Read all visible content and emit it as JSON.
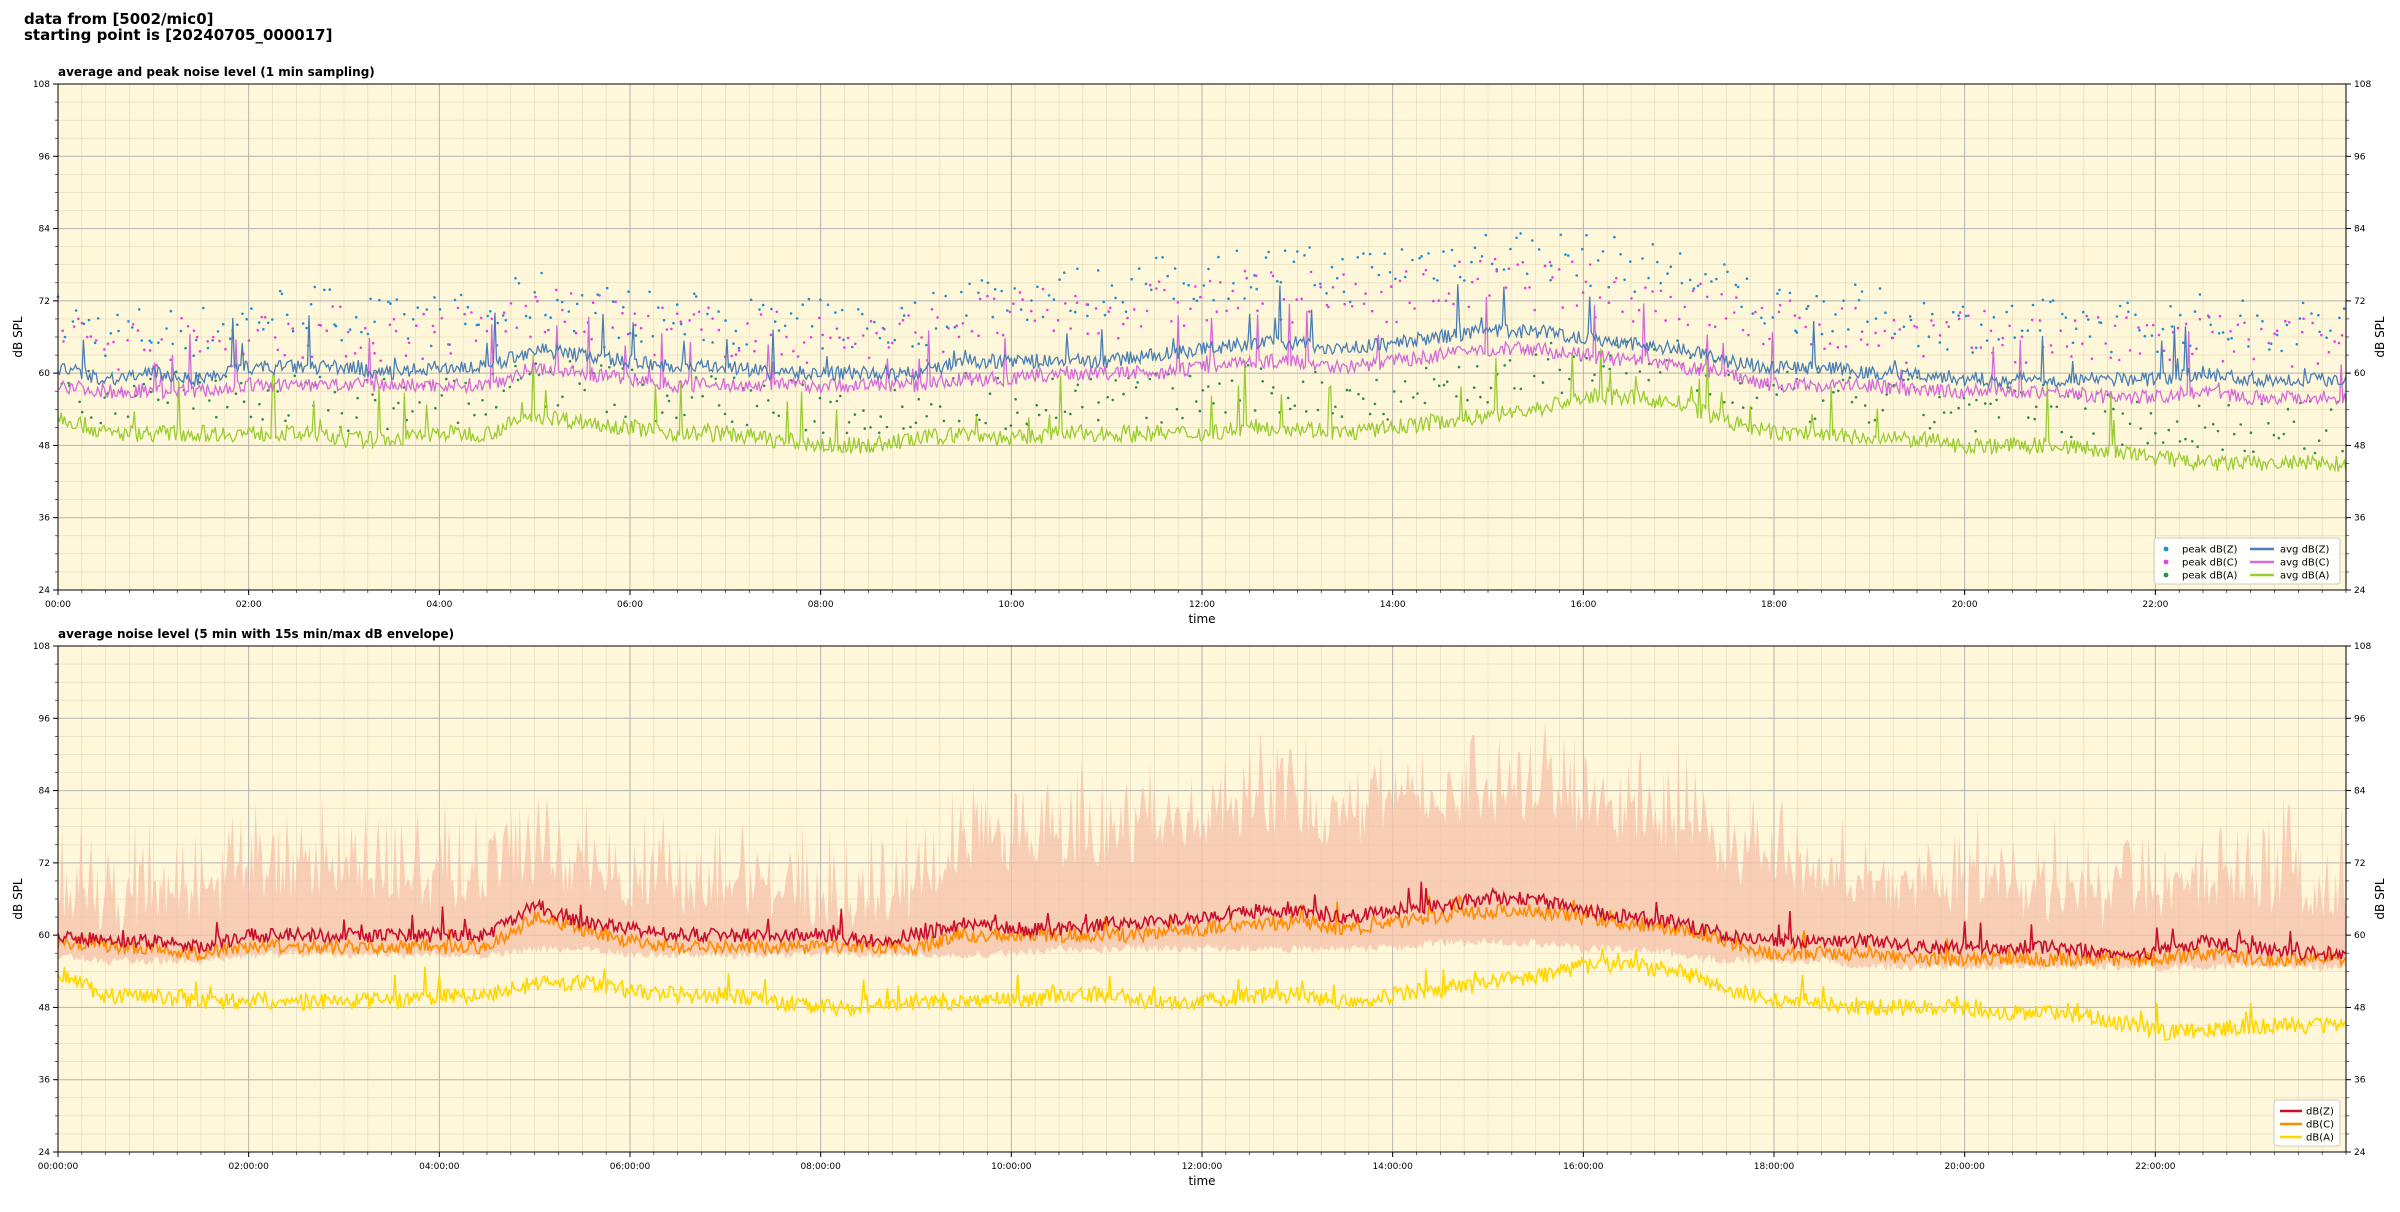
{
  "header": {
    "line1": "data from [5002/mic0]",
    "line2": "starting point is [20240705_000017]"
  },
  "colors": {
    "plot_bg": "#fff7d9",
    "peak_z": "#1f8fd6",
    "peak_c": "#e83ee0",
    "peak_a": "#2e8b57",
    "avg_z": "#4a7fb5",
    "avg_c": "#d46bd8",
    "avg_a": "#9acd32",
    "dbz": "#c8102e",
    "dbc": "#ff8c00",
    "dba": "#ffd700",
    "envelope": "#f6c0a8"
  },
  "chart_data": [
    {
      "type": "line",
      "title": "average and peak noise level (1 min sampling)",
      "xlabel": "time",
      "ylabel": "dB SPL",
      "ylim": [
        24,
        108
      ],
      "xlim_hours": [
        0,
        24
      ],
      "yticks": [
        "24",
        "36",
        "48",
        "60",
        "72",
        "84",
        "96",
        "108"
      ],
      "xticks": [
        "00:00",
        "02:00",
        "04:00",
        "06:00",
        "08:00",
        "10:00",
        "12:00",
        "14:00",
        "16:00",
        "18:00",
        "20:00",
        "22:00"
      ],
      "grid": true,
      "legend_position": "lower-right",
      "x_hours": [
        0,
        0.5,
        1,
        1.5,
        2,
        2.5,
        3,
        3.5,
        4,
        4.5,
        5,
        5.5,
        6,
        6.5,
        7,
        7.5,
        8,
        8.5,
        9,
        9.5,
        10,
        10.5,
        11,
        11.5,
        12,
        12.5,
        13,
        13.5,
        14,
        14.5,
        15,
        15.5,
        16,
        16.5,
        17,
        17.5,
        18,
        18.5,
        19,
        19.5,
        20,
        20.5,
        21,
        21.5,
        22,
        22.5,
        23,
        23.5,
        24
      ],
      "series": [
        {
          "name": "avg dB(Z)",
          "kind": "line",
          "color_key": "avg_z",
          "values": [
            61,
            59,
            60,
            59,
            61,
            61,
            61,
            60,
            61,
            61,
            64,
            63,
            62,
            61,
            61,
            60,
            60,
            60,
            60,
            62,
            62,
            62,
            62,
            63,
            64,
            65,
            65,
            64,
            65,
            66,
            67,
            67,
            66,
            65,
            64,
            62,
            61,
            61,
            60,
            60,
            59,
            59,
            59,
            59,
            59,
            60,
            59,
            59,
            59
          ]
        },
        {
          "name": "avg dB(C)",
          "kind": "line",
          "color_key": "avg_c",
          "values": [
            58,
            57,
            57,
            57,
            58,
            58,
            58,
            58,
            58,
            58,
            61,
            60,
            59,
            58,
            58,
            58,
            58,
            58,
            58,
            59,
            59,
            60,
            60,
            60,
            61,
            62,
            62,
            61,
            62,
            63,
            64,
            64,
            63,
            62,
            61,
            60,
            58,
            58,
            58,
            57,
            57,
            57,
            57,
            56,
            56,
            57,
            56,
            56,
            56
          ]
        },
        {
          "name": "avg dB(A)",
          "kind": "line",
          "color_key": "avg_a",
          "values": [
            53,
            50,
            50,
            50,
            50,
            50,
            49,
            49,
            50,
            50,
            53,
            52,
            51,
            50,
            50,
            49,
            48,
            48,
            49,
            50,
            49,
            50,
            50,
            50,
            50,
            51,
            51,
            50,
            51,
            52,
            53,
            54,
            56,
            56,
            55,
            52,
            50,
            50,
            49,
            49,
            48,
            48,
            48,
            47,
            46,
            45,
            45,
            45,
            45
          ]
        },
        {
          "name": "peak dB(Z)",
          "kind": "scatter",
          "color_key": "peak_z",
          "values": [
            68,
            66,
            66,
            66,
            68,
            70,
            69,
            67,
            68,
            68,
            72,
            70,
            69,
            68,
            68,
            67,
            67,
            67,
            67,
            72,
            72,
            72,
            73,
            74,
            75,
            76,
            76,
            75,
            77,
            78,
            79,
            79,
            78,
            77,
            76,
            73,
            70,
            70,
            69,
            68,
            67,
            67,
            67,
            67,
            67,
            68,
            67,
            67,
            67
          ]
        },
        {
          "name": "peak dB(C)",
          "kind": "scatter",
          "color_key": "peak_c",
          "values": [
            66,
            64,
            64,
            64,
            65,
            66,
            66,
            65,
            66,
            66,
            69,
            68,
            67,
            66,
            66,
            65,
            65,
            65,
            65,
            68,
            68,
            69,
            69,
            70,
            71,
            72,
            72,
            71,
            72,
            73,
            74,
            74,
            73,
            72,
            71,
            69,
            67,
            67,
            66,
            65,
            65,
            65,
            65,
            64,
            64,
            65,
            64,
            64,
            64
          ]
        },
        {
          "name": "peak dB(A)",
          "kind": "scatter",
          "color_key": "peak_a",
          "values": [
            58,
            55,
            55,
            55,
            55,
            55,
            54,
            54,
            55,
            55,
            58,
            57,
            56,
            55,
            55,
            54,
            53,
            53,
            54,
            55,
            54,
            55,
            55,
            55,
            55,
            56,
            56,
            55,
            56,
            57,
            58,
            59,
            61,
            61,
            60,
            57,
            55,
            55,
            54,
            54,
            53,
            53,
            53,
            52,
            51,
            50,
            50,
            50,
            50
          ]
        }
      ]
    },
    {
      "type": "area",
      "title": "average noise level (5 min with 15s min/max dB envelope)",
      "xlabel": "time",
      "ylabel": "dB SPL",
      "ylim": [
        24,
        108
      ],
      "xlim_hours": [
        0,
        24
      ],
      "yticks": [
        "24",
        "36",
        "48",
        "60",
        "72",
        "84",
        "96",
        "108"
      ],
      "xticks": [
        "00:00:00",
        "02:00:00",
        "04:00:00",
        "06:00:00",
        "08:00:00",
        "10:00:00",
        "12:00:00",
        "14:00:00",
        "16:00:00",
        "18:00:00",
        "20:00:00",
        "22:00:00"
      ],
      "grid": true,
      "legend_position": "lower-right",
      "x_hours": [
        0,
        0.5,
        1,
        1.5,
        2,
        2.5,
        3,
        3.5,
        4,
        4.5,
        5,
        5.5,
        6,
        6.5,
        7,
        7.5,
        8,
        8.5,
        9,
        9.5,
        10,
        10.5,
        11,
        11.5,
        12,
        12.5,
        13,
        13.5,
        14,
        14.5,
        15,
        15.5,
        16,
        16.5,
        17,
        17.5,
        18,
        18.5,
        19,
        19.5,
        20,
        20.5,
        21,
        21.5,
        22,
        22.5,
        23,
        23.5,
        24
      ],
      "envelope_max": [
        68,
        66,
        67,
        67,
        71,
        72,
        72,
        70,
        70,
        70,
        74,
        72,
        70,
        69,
        69,
        68,
        67,
        67,
        68,
        76,
        76,
        76,
        77,
        78,
        80,
        82,
        82,
        80,
        82,
        83,
        84,
        84,
        82,
        80,
        79,
        75,
        72,
        72,
        70,
        69,
        68,
        68,
        68,
        67,
        67,
        70,
        70,
        69,
        68
      ],
      "envelope_min": [
        56,
        55,
        55,
        55,
        56,
        56,
        56,
        56,
        56,
        56,
        57,
        57,
        56,
        56,
        56,
        56,
        56,
        56,
        56,
        56,
        56,
        57,
        57,
        57,
        57,
        57,
        57,
        57,
        57,
        58,
        58,
        58,
        57,
        57,
        56,
        55,
        55,
        55,
        54,
        54,
        54,
        54,
        54,
        54,
        54,
        54,
        54,
        54,
        54
      ],
      "series": [
        {
          "name": "dB(Z)",
          "kind": "line",
          "color_key": "dbz",
          "values": [
            60,
            59,
            59,
            58,
            60,
            60,
            60,
            60,
            60,
            60,
            65,
            62,
            61,
            60,
            60,
            60,
            60,
            59,
            60,
            62,
            61,
            61,
            62,
            62,
            63,
            64,
            64,
            63,
            64,
            65,
            66,
            66,
            64,
            63,
            62,
            60,
            59,
            59,
            59,
            58,
            58,
            58,
            58,
            57,
            57,
            59,
            58,
            57,
            57
          ]
        },
        {
          "name": "dB(C)",
          "kind": "line",
          "color_key": "dbc",
          "values": [
            59,
            58,
            58,
            57,
            58,
            58,
            58,
            58,
            58,
            58,
            63,
            61,
            59,
            58,
            58,
            58,
            58,
            58,
            58,
            60,
            60,
            60,
            60,
            60,
            61,
            62,
            62,
            61,
            62,
            63,
            64,
            64,
            63,
            62,
            61,
            59,
            57,
            57,
            57,
            56,
            56,
            56,
            56,
            56,
            56,
            57,
            56,
            56,
            56
          ]
        },
        {
          "name": "dB(A)",
          "kind": "line",
          "color_key": "dba",
          "values": [
            54,
            50,
            50,
            49,
            49,
            49,
            49,
            49,
            50,
            50,
            52,
            52,
            51,
            50,
            50,
            49,
            48,
            48,
            49,
            49,
            49,
            50,
            50,
            49,
            49,
            50,
            50,
            49,
            50,
            51,
            52,
            53,
            55,
            55,
            54,
            51,
            49,
            49,
            48,
            48,
            48,
            47,
            47,
            46,
            44,
            44,
            45,
            45,
            45
          ]
        }
      ]
    }
  ]
}
